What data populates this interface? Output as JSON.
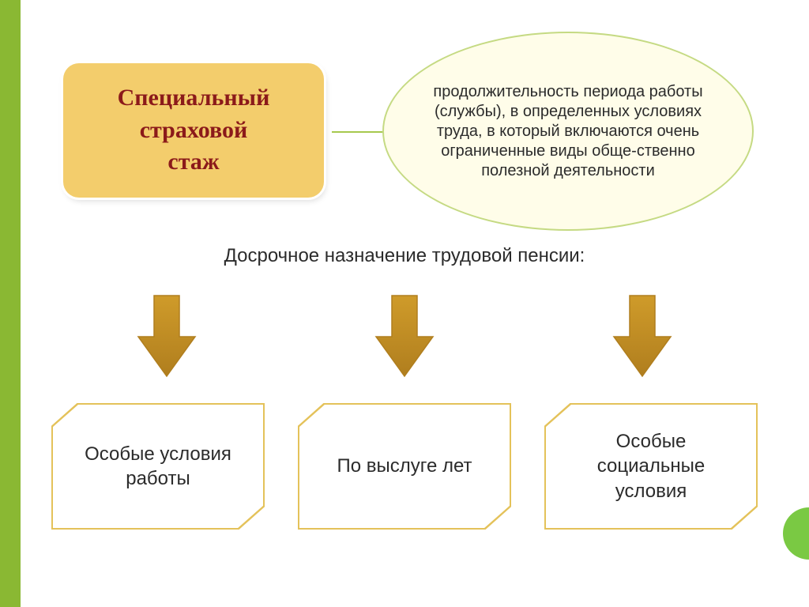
{
  "colors": {
    "accent_bar": "#8ab833",
    "title_bg": "#f3cd6c",
    "title_border": "#ffffff",
    "title_text": "#8b1a1a",
    "ellipse_bg": "#fffde9",
    "ellipse_border": "#c5da83",
    "ellipse_text": "#2b2b2b",
    "connector": "#a6c84e",
    "subtitle_text": "#2b2b2b",
    "arrow_fill": "#cf9b2a",
    "arrow_edge": "#b07e1e",
    "hex_border": "#e4c25a",
    "hex_text": "#2b2b2b",
    "dot": "#7ac943"
  },
  "title_box": {
    "line1": "Специальный",
    "line2": "страховой",
    "line3": "стаж"
  },
  "ellipse_text": "продолжительность периода работы (службы), в определенных условиях труда, в который включаются очень ограниченные виды обще-ственно полезной деятельности",
  "subtitle": "Досрочное назначение трудовой пенсии:",
  "bottom_boxes": [
    "Особые условия работы",
    "По выслуге лет",
    "Особые социальные условия"
  ],
  "arrow": {
    "width": 80,
    "height": 110
  }
}
